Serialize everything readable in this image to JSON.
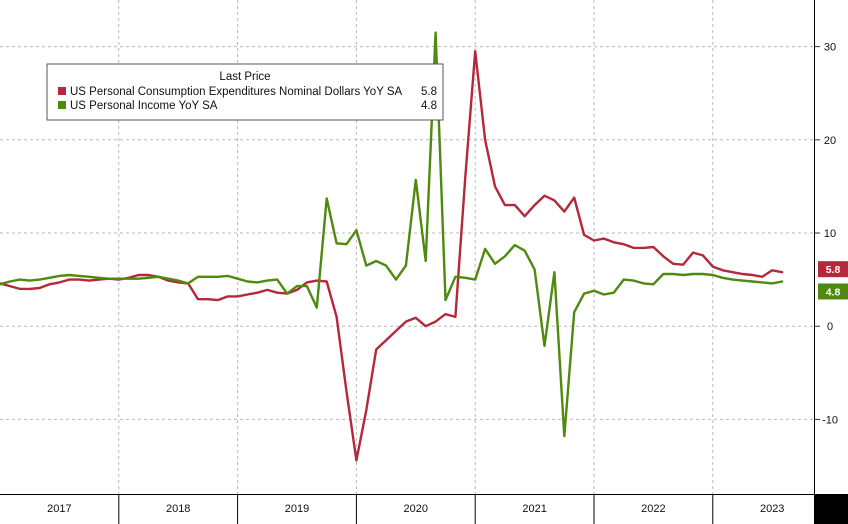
{
  "chart_data": {
    "type": "line",
    "legend_title": "Last Price",
    "legend_position": "top-left",
    "grid": true,
    "x_range": [
      "2017-01",
      "2023-09"
    ],
    "x_tick_labels": [
      "2017",
      "2018",
      "2019",
      "2020",
      "2021",
      "2022",
      "2023"
    ],
    "ylim": [
      -18,
      35
    ],
    "y_ticks": [
      -10,
      0,
      10,
      20,
      30
    ],
    "y_tick_labels": [
      "-10",
      "0",
      "10",
      "20",
      "30"
    ],
    "y_axis_side": "right",
    "series": [
      {
        "name": "US Personal Consumption Expenditures Nominal Dollars YoY SA",
        "last_value_label": "5.8",
        "color": "#b5273b",
        "x": [
          "2017-01",
          "2017-02",
          "2017-03",
          "2017-04",
          "2017-05",
          "2017-06",
          "2017-07",
          "2017-08",
          "2017-09",
          "2017-10",
          "2017-11",
          "2017-12",
          "2018-01",
          "2018-02",
          "2018-03",
          "2018-04",
          "2018-05",
          "2018-06",
          "2018-07",
          "2018-08",
          "2018-09",
          "2018-10",
          "2018-11",
          "2018-12",
          "2019-01",
          "2019-02",
          "2019-03",
          "2019-04",
          "2019-05",
          "2019-06",
          "2019-07",
          "2019-08",
          "2019-09",
          "2019-10",
          "2019-11",
          "2019-12",
          "2020-01",
          "2020-02",
          "2020-03",
          "2020-04",
          "2020-05",
          "2020-06",
          "2020-07",
          "2020-08",
          "2020-09",
          "2020-10",
          "2020-11",
          "2020-12",
          "2021-01",
          "2021-02",
          "2021-03",
          "2021-04",
          "2021-05",
          "2021-06",
          "2021-07",
          "2021-08",
          "2021-09",
          "2021-10",
          "2021-11",
          "2021-12",
          "2022-01",
          "2022-02",
          "2022-03",
          "2022-04",
          "2022-05",
          "2022-06",
          "2022-07",
          "2022-08",
          "2022-09",
          "2022-10",
          "2022-11",
          "2022-12",
          "2023-01",
          "2023-02",
          "2023-03",
          "2023-04",
          "2023-05",
          "2023-06",
          "2023-07",
          "2023-08"
        ],
        "values": [
          4.6,
          4.3,
          4.0,
          4.0,
          4.1,
          4.5,
          4.7,
          5.0,
          5.0,
          4.9,
          5.0,
          5.1,
          5.0,
          5.2,
          5.5,
          5.5,
          5.3,
          4.9,
          4.7,
          4.6,
          2.9,
          2.9,
          2.8,
          3.2,
          3.2,
          3.4,
          3.6,
          3.9,
          3.6,
          3.5,
          3.9,
          4.7,
          4.9,
          4.8,
          1.0,
          -7.0,
          -14.4,
          -9.0,
          -2.5,
          -1.5,
          -0.5,
          0.5,
          0.9,
          0.0,
          0.5,
          1.3,
          1.0,
          16.0,
          29.5,
          20.0,
          15.0,
          13.0,
          13.0,
          11.8,
          13.0,
          14.0,
          13.5,
          12.3,
          13.8,
          9.8,
          9.2,
          9.4,
          9.0,
          8.8,
          8.4,
          8.4,
          8.5,
          7.5,
          6.7,
          6.6,
          7.9,
          7.6,
          6.4,
          6.0,
          5.8,
          5.6,
          5.5,
          5.3,
          6.0,
          5.8
        ]
      },
      {
        "name": "US Personal Income YoY SA",
        "last_value_label": "4.8",
        "color": "#4f8a0f",
        "x": [
          "2017-01",
          "2017-02",
          "2017-03",
          "2017-04",
          "2017-05",
          "2017-06",
          "2017-07",
          "2017-08",
          "2017-09",
          "2017-10",
          "2017-11",
          "2017-12",
          "2018-01",
          "2018-02",
          "2018-03",
          "2018-04",
          "2018-05",
          "2018-06",
          "2018-07",
          "2018-08",
          "2018-09",
          "2018-10",
          "2018-11",
          "2018-12",
          "2019-01",
          "2019-02",
          "2019-03",
          "2019-04",
          "2019-05",
          "2019-06",
          "2019-07",
          "2019-08",
          "2019-09",
          "2019-10",
          "2019-11",
          "2019-12",
          "2020-01",
          "2020-02",
          "2020-03",
          "2020-04",
          "2020-05",
          "2020-06",
          "2020-07",
          "2020-08",
          "2020-09",
          "2020-10",
          "2020-11",
          "2020-12",
          "2021-01",
          "2021-02",
          "2021-03",
          "2021-04",
          "2021-05",
          "2021-06",
          "2021-07",
          "2021-08",
          "2021-09",
          "2021-10",
          "2021-11",
          "2021-12",
          "2022-01",
          "2022-02",
          "2022-03",
          "2022-04",
          "2022-05",
          "2022-06",
          "2022-07",
          "2022-08",
          "2022-09",
          "2022-10",
          "2022-11",
          "2022-12",
          "2023-01",
          "2023-02",
          "2023-03",
          "2023-04",
          "2023-05",
          "2023-06",
          "2023-07",
          "2023-08"
        ],
        "values": [
          4.5,
          4.8,
          5.0,
          4.9,
          5.0,
          5.2,
          5.4,
          5.5,
          5.4,
          5.3,
          5.2,
          5.1,
          5.1,
          5.1,
          5.1,
          5.2,
          5.3,
          5.1,
          4.9,
          4.6,
          5.3,
          5.3,
          5.3,
          5.4,
          5.1,
          4.8,
          4.7,
          4.9,
          5.0,
          3.5,
          4.3,
          4.3,
          2.0,
          13.7,
          8.9,
          8.8,
          10.3,
          6.5,
          7.0,
          6.5,
          5.0,
          6.5,
          15.7,
          7.0,
          31.5,
          2.8,
          5.3,
          5.2,
          5.0,
          8.3,
          6.7,
          7.5,
          8.7,
          8.1,
          6.1,
          -2.1,
          5.8,
          -11.8,
          1.5,
          3.5,
          3.8,
          3.4,
          3.6,
          5.0,
          4.9,
          4.6,
          4.5,
          5.6,
          5.6,
          5.5,
          5.6,
          5.6,
          5.5,
          5.2,
          5.0,
          4.9,
          4.8,
          4.7,
          4.6,
          4.8
        ]
      }
    ]
  }
}
